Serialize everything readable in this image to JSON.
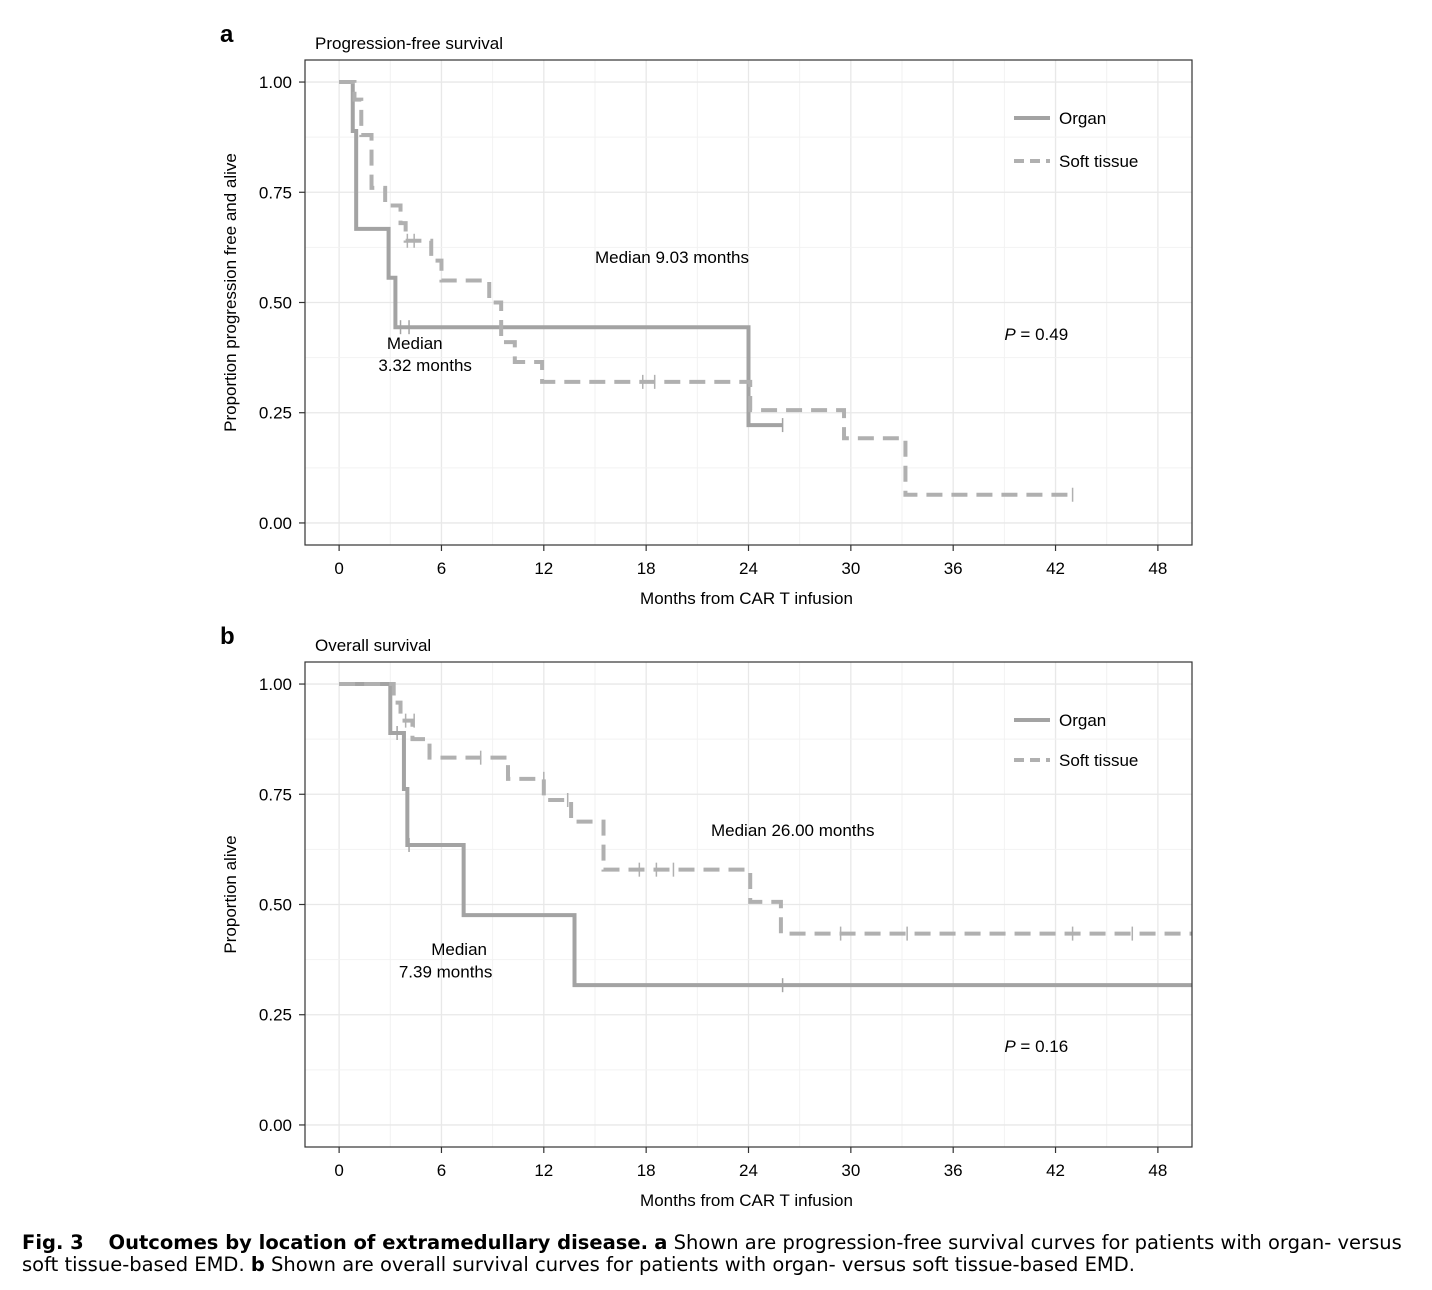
{
  "chart_data": [
    {
      "panel": "a",
      "type": "line",
      "title": "Progression-free survival",
      "xlabel": "Months from CAR T infusion",
      "ylabel": "Proportion progression free and alive",
      "xlim": [
        -2,
        50
      ],
      "ylim": [
        -0.05,
        1.05
      ],
      "xticks": [
        0,
        6,
        12,
        18,
        24,
        30,
        36,
        42,
        48
      ],
      "yticks": [
        0,
        0.25,
        0.5,
        0.75,
        1.0
      ],
      "ytick_labels": [
        "0.00",
        "0.25",
        "0.50",
        "0.75",
        "1.00"
      ],
      "grid": true,
      "legend_position": "top-right",
      "series": [
        {
          "name": "Organ",
          "style": "solid",
          "x": [
            0,
            0.8,
            1.0,
            2.9,
            3.3,
            24.0,
            26.0
          ],
          "y": [
            1.0,
            0.889,
            0.667,
            0.556,
            0.444,
            0.222,
            0.222
          ],
          "censor_x": [
            3.6,
            4.1,
            26.0
          ],
          "censor_y": [
            0.444,
            0.444,
            0.222
          ]
        },
        {
          "name": "Soft tissue",
          "style": "dashed",
          "x": [
            0,
            0.9,
            1.3,
            1.9,
            2.7,
            3.6,
            3.9,
            5.4,
            6.0,
            8.8,
            9.5,
            10.3,
            11.9,
            24.1,
            29.6,
            33.2,
            43.0
          ],
          "y": [
            1.0,
            0.96,
            0.88,
            0.76,
            0.72,
            0.68,
            0.64,
            0.595,
            0.55,
            0.5,
            0.41,
            0.365,
            0.32,
            0.256,
            0.192,
            0.064,
            0.064
          ],
          "censor_x": [
            4.0,
            4.4,
            17.8,
            18.5,
            43.0
          ],
          "censor_y": [
            0.64,
            0.64,
            0.32,
            0.32,
            0.064
          ]
        }
      ],
      "annotations": [
        {
          "text": "Median 9.03 months",
          "x": 15.0,
          "y": 0.59
        },
        {
          "text": "Median",
          "x": 2.8,
          "y": 0.395
        },
        {
          "text": "3.32 months",
          "x": 2.3,
          "y": 0.345
        },
        {
          "text": "P = 0.49",
          "x": 39.0,
          "y": 0.415
        }
      ]
    },
    {
      "panel": "b",
      "type": "line",
      "title": "Overall survival",
      "xlabel": "Months from CAR T infusion",
      "ylabel": "Proportion alive",
      "xlim": [
        -2,
        50
      ],
      "ylim": [
        -0.05,
        1.05
      ],
      "xticks": [
        0,
        6,
        12,
        18,
        24,
        30,
        36,
        42,
        48
      ],
      "yticks": [
        0,
        0.25,
        0.5,
        0.75,
        1.0
      ],
      "ytick_labels": [
        "0.00",
        "0.25",
        "0.50",
        "0.75",
        "1.00"
      ],
      "grid": true,
      "legend_position": "top-right",
      "series": [
        {
          "name": "Organ",
          "style": "solid",
          "x": [
            0,
            3.0,
            3.8,
            4.0,
            7.3,
            13.8,
            50.0
          ],
          "y": [
            1.0,
            0.889,
            0.762,
            0.635,
            0.476,
            0.317,
            0.317
          ],
          "censor_x": [
            3.4,
            4.1,
            26.0
          ],
          "censor_y": [
            0.889,
            0.635,
            0.317
          ]
        },
        {
          "name": "Soft tissue",
          "style": "dashed",
          "x": [
            0,
            3.2,
            3.6,
            4.3,
            5.3,
            9.9,
            12.0,
            13.6,
            15.5,
            24.1,
            25.9,
            50.0
          ],
          "y": [
            1.0,
            0.958,
            0.917,
            0.875,
            0.833,
            0.785,
            0.737,
            0.688,
            0.579,
            0.506,
            0.434,
            0.434
          ],
          "censor_x": [
            3.9,
            4.4,
            8.3,
            12.0,
            13.4,
            17.6,
            18.6,
            19.6,
            29.4,
            33.3,
            43.0,
            46.5
          ],
          "censor_y": [
            0.917,
            0.917,
            0.833,
            0.785,
            0.737,
            0.579,
            0.579,
            0.579,
            0.434,
            0.434,
            0.434,
            0.434
          ]
        }
      ],
      "annotations": [
        {
          "text": "Median  26.00 months",
          "x": 21.8,
          "y": 0.655
        },
        {
          "text": "Median",
          "x": 5.4,
          "y": 0.385
        },
        {
          "text": "7.39  months",
          "x": 3.5,
          "y": 0.335
        },
        {
          "text": "P = 0.16",
          "x": 39.0,
          "y": 0.165
        }
      ]
    }
  ],
  "panel_labels": [
    "a",
    "b"
  ],
  "caption": {
    "label": "Fig. 3",
    "title": "Outcomes by location of extramedullary disease.",
    "part_a_label": "a",
    "part_a_text": "Shown are progression-free survival curves for patients with organ- versus soft tissue-based EMD.",
    "part_b_label": "b",
    "part_b_text": "Shown are overall survival curves for patients with organ- versus soft tissue-based EMD."
  },
  "colors": {
    "organ": "#a3a3a3",
    "soft_tissue": "#b0b0b0",
    "grid": "#e8e8e8",
    "frame": "#333333"
  }
}
